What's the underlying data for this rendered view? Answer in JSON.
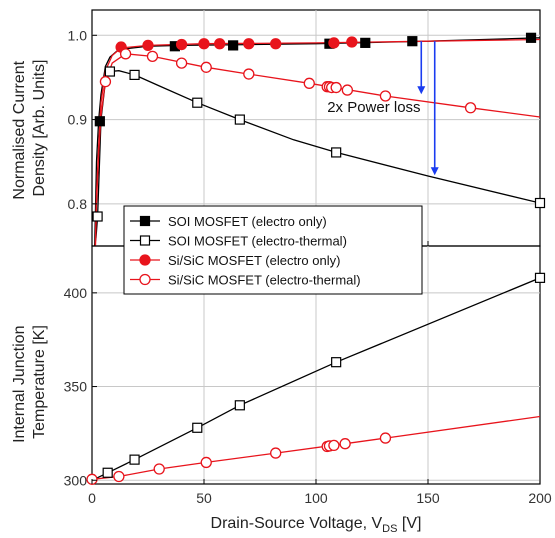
{
  "chart_data": [
    {
      "type": "line",
      "panel": "top",
      "ylabel_lines": [
        "Normalised Current",
        "Density [Arb. Units]"
      ],
      "xlim": [
        0,
        200
      ],
      "ylim": [
        0.75,
        1.03
      ],
      "yticks": [
        0.8,
        0.9,
        1.0
      ],
      "ytick_labels": [
        "0.8",
        "0.9",
        "1.0"
      ],
      "grid": true,
      "series": [
        {
          "name": "SOI MOSFET (electro only)",
          "color": "#000000",
          "marker": "square-filled",
          "x": [
            3.5,
            37,
            63,
            106,
            122,
            143,
            196
          ],
          "y": [
            0.898,
            0.987,
            0.988,
            0.99,
            0.991,
            0.993,
            0.997
          ],
          "curve_x": [
            1.2,
            1.6,
            2,
            3,
            4,
            6,
            8,
            11,
            15,
            25,
            40,
            70,
            100,
            150,
            200
          ],
          "curve_y": [
            0.75,
            0.8,
            0.85,
            0.9,
            0.93,
            0.963,
            0.974,
            0.981,
            0.984,
            0.987,
            0.988,
            0.989,
            0.99,
            0.993,
            0.997
          ]
        },
        {
          "name": "SOI MOSFET (electro-thermal)",
          "color": "#000000",
          "marker": "square-open",
          "x": [
            2.5,
            8,
            19,
            47,
            66,
            109,
            200
          ],
          "y": [
            0.785,
            0.957,
            0.953,
            0.92,
            0.9,
            0.861,
            0.801
          ],
          "curve_x": [
            1.2,
            1.8,
            2.5,
            4,
            6,
            8,
            12,
            19,
            30,
            47,
            66,
            90,
            109,
            150,
            200
          ],
          "curve_y": [
            0.75,
            0.76,
            0.785,
            0.9,
            0.945,
            0.957,
            0.958,
            0.953,
            0.94,
            0.92,
            0.9,
            0.876,
            0.861,
            0.833,
            0.801
          ]
        },
        {
          "name": "Si/SiC MOSFET (electro only)",
          "color": "#e8141c",
          "marker": "circle-filled",
          "x": [
            13,
            25,
            40,
            50,
            57,
            70,
            82,
            108,
            116
          ],
          "y": [
            0.986,
            0.988,
            0.989,
            0.99,
            0.99,
            0.99,
            0.99,
            0.991,
            0.992
          ],
          "curve_x": [
            1.5,
            2,
            3,
            4,
            6,
            9,
            13,
            25,
            50,
            100,
            150,
            200
          ],
          "curve_y": [
            0.75,
            0.81,
            0.87,
            0.92,
            0.958,
            0.976,
            0.985,
            0.988,
            0.99,
            0.991,
            0.993,
            0.995
          ]
        },
        {
          "name": "Si/SiC MOSFET (electro-thermal)",
          "color": "#e8141c",
          "marker": "circle-open",
          "x": [
            6,
            15,
            27,
            40,
            51,
            70,
            97,
            105,
            106,
            107,
            109,
            114,
            131,
            169
          ],
          "y": [
            0.945,
            0.978,
            0.975,
            0.967,
            0.962,
            0.954,
            0.943,
            0.939,
            0.939,
            0.938,
            0.938,
            0.935,
            0.928,
            0.914
          ],
          "curve_x": [
            1.5,
            2,
            3,
            4,
            6,
            9,
            15,
            27,
            51,
            70,
            97,
            131,
            169,
            200
          ],
          "curve_y": [
            0.75,
            0.8,
            0.86,
            0.905,
            0.945,
            0.967,
            0.978,
            0.975,
            0.962,
            0.954,
            0.943,
            0.928,
            0.914,
            0.903
          ]
        }
      ],
      "annotations": [
        {
          "text": "2x Power loss",
          "x": 105,
          "y": 0.915
        },
        {
          "type": "arrow",
          "x": 147,
          "y_from": 0.993,
          "y_to": 0.93,
          "color": "#1a3cf0"
        },
        {
          "type": "arrow",
          "x": 153,
          "y_from": 0.993,
          "y_to": 0.834,
          "color": "#1a3cf0"
        }
      ]
    },
    {
      "type": "line",
      "panel": "bottom",
      "ylabel_lines": [
        "Internal Junction",
        "Temperature [K]"
      ],
      "xlabel": "Drain-Source Voltage, V",
      "xlabel_sub": "DS",
      "xlabel_unit": " [V]",
      "xlim": [
        0,
        200
      ],
      "ylim": [
        298,
        425
      ],
      "xticks": [
        0,
        50,
        100,
        150,
        200
      ],
      "xtick_labels": [
        "0",
        "50",
        "100",
        "150",
        "200"
      ],
      "yticks": [
        300,
        350,
        400
      ],
      "ytick_labels": [
        "300",
        "350",
        "400"
      ],
      "grid": true,
      "series": [
        {
          "name": "SOI MOSFET (electro-thermal)",
          "color": "#000000",
          "marker": "square-open",
          "x": [
            7,
            19,
            47,
            66,
            109,
            200
          ],
          "y": [
            304,
            311,
            328,
            340,
            363,
            408
          ],
          "curve_x": [
            0,
            7,
            19,
            47,
            66,
            109,
            200
          ],
          "curve_y": [
            300,
            304,
            311,
            328,
            340,
            363,
            408
          ]
        },
        {
          "name": "Si/SiC MOSFET (electro-thermal)",
          "color": "#e8141c",
          "marker": "circle-open",
          "x": [
            0,
            12,
            30,
            51,
            82,
            105,
            106,
            108,
            113,
            131
          ],
          "y": [
            300.5,
            302,
            306,
            309.5,
            314.5,
            318,
            318.3,
            318.6,
            319.5,
            322.5
          ],
          "curve_x": [
            0,
            12,
            30,
            51,
            82,
            113,
            131,
            200
          ],
          "curve_y": [
            300.5,
            302,
            306,
            309.5,
            314.5,
            319.5,
            322.5,
            334
          ]
        }
      ]
    }
  ],
  "legend": {
    "items": [
      {
        "label": "SOI MOSFET (electro only)",
        "color": "#000000",
        "marker": "square-filled"
      },
      {
        "label": "SOI MOSFET (electro-thermal)",
        "color": "#000000",
        "marker": "square-open"
      },
      {
        "label": "Si/SiC MOSFET (electro only)",
        "color": "#e8141c",
        "marker": "circle-filled"
      },
      {
        "label": "Si/SiC MOSFET (electro-thermal)",
        "color": "#e8141c",
        "marker": "circle-open"
      }
    ]
  }
}
